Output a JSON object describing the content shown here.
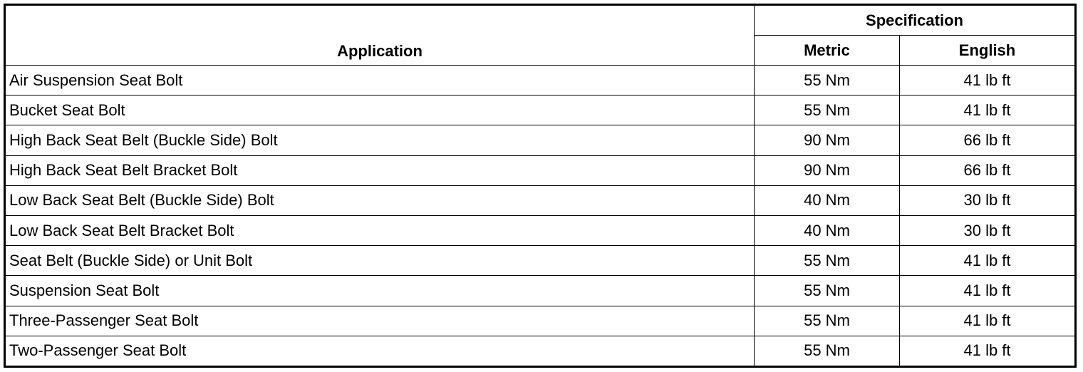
{
  "table": {
    "header": {
      "application": "Application",
      "specification": "Specification",
      "metric": "Metric",
      "english": "English"
    },
    "rows": [
      [
        "Air Suspension Seat Bolt",
        "55 Nm",
        "41 lb ft"
      ],
      [
        "Bucket Seat Bolt",
        "55 Nm",
        "41 lb ft"
      ],
      [
        "High Back Seat Belt (Buckle Side) Bolt",
        "90 Nm",
        "66 lb ft"
      ],
      [
        "High Back Seat Belt Bracket Bolt",
        "90 Nm",
        "66 lb ft"
      ],
      [
        "Low Back Seat Belt (Buckle Side) Bolt",
        "40 Nm",
        "30 lb ft"
      ],
      [
        "Low Back Seat Belt Bracket Bolt",
        "40 Nm",
        "30 lb ft"
      ],
      [
        "Seat Belt (Buckle Side) or Unit Bolt",
        "55 Nm",
        "41 lb ft"
      ],
      [
        "Suspension Seat Bolt",
        "55 Nm",
        "41 lb ft"
      ],
      [
        "Three-Passenger Seat Bolt",
        "55 Nm",
        "41 lb ft"
      ],
      [
        "Two-Passenger Seat Bolt",
        "55 Nm",
        "41 lb ft"
      ]
    ]
  }
}
